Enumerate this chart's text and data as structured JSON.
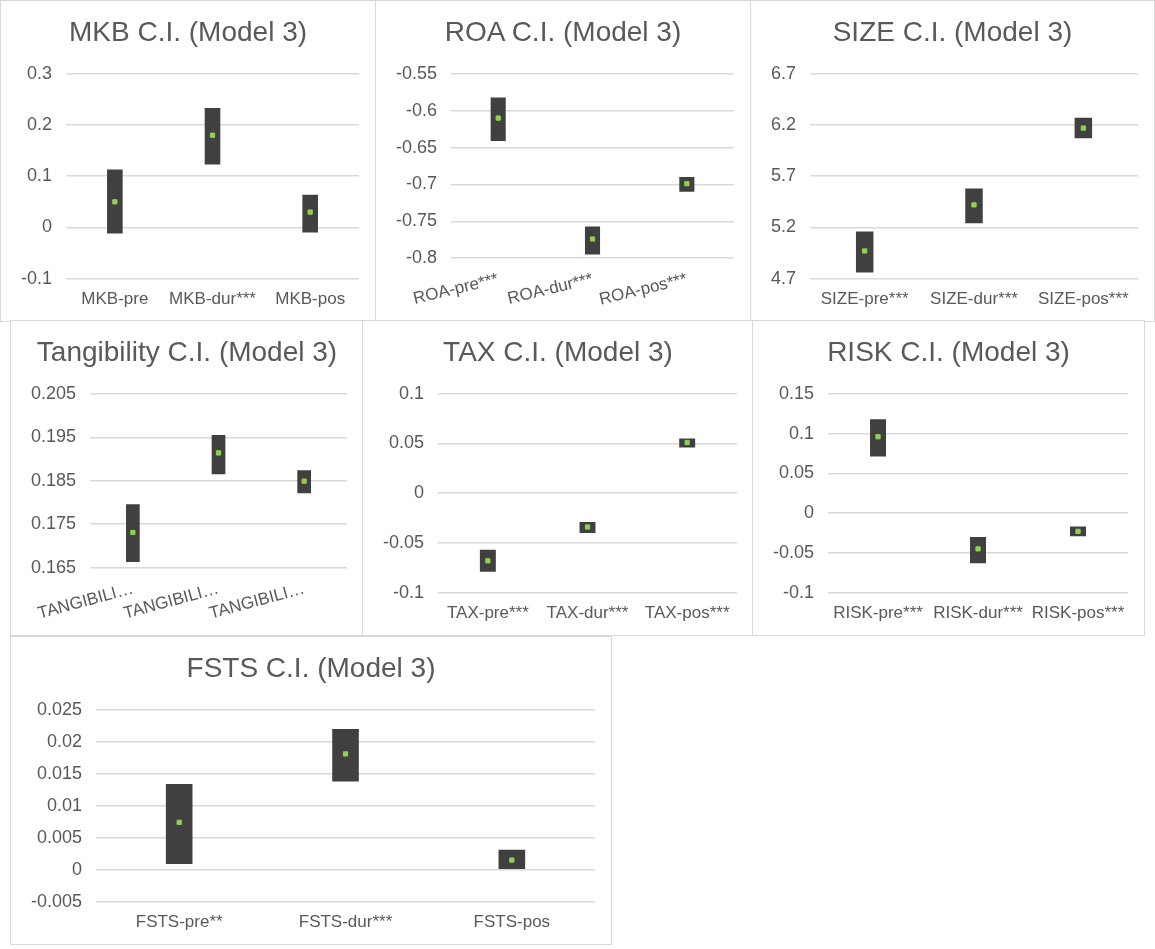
{
  "chart_data": [
    {
      "type": "bar",
      "title": "MKB C.I. (Model 3)",
      "categories": [
        "MKB-pre",
        "MKB-dur***",
        "MKB-pos"
      ],
      "series": [
        {
          "color": "#404040",
          "base": [
            -0.012,
            0.123,
            -0.01
          ],
          "values": [
            0.125,
            0.11,
            0.074
          ]
        },
        {
          "type": "scatter",
          "color": "#92d050",
          "marker": "square",
          "values": [
            0.05,
            0.18,
            0.03
          ]
        }
      ],
      "ylim": [
        -0.1,
        0.3
      ],
      "yticks": [
        -0.1,
        0,
        0.1,
        0.2,
        0.3
      ],
      "grid": "y",
      "legend": false
    },
    {
      "type": "bar",
      "title": "ROA C.I. (Model 3)",
      "categories": [
        "ROA-pre***",
        "ROA-dur***",
        "ROA-pos***"
      ],
      "series": [
        {
          "color": "#404040",
          "base": [
            -0.641,
            -0.795,
            -0.71
          ],
          "values": [
            0.059,
            0.038,
            0.02
          ]
        },
        {
          "type": "scatter",
          "color": "#92d050",
          "marker": "square",
          "values": [
            -0.61,
            -0.774,
            -0.699
          ]
        }
      ],
      "ylim": [
        -0.8,
        -0.55
      ],
      "yticks": [
        -0.8,
        -0.75,
        -0.7,
        -0.65,
        -0.6,
        -0.55
      ],
      "grid": "y",
      "legend": false
    },
    {
      "type": "bar",
      "title": "SIZE C.I. (Model 3)",
      "categories": [
        "SIZE-pre***",
        "SIZE-dur***",
        "SIZE-pos***"
      ],
      "series": [
        {
          "color": "#404040",
          "base": [
            4.76,
            5.24,
            6.07
          ],
          "values": [
            0.4,
            0.34,
            0.2
          ]
        },
        {
          "type": "scatter",
          "color": "#92d050",
          "marker": "square",
          "values": [
            4.97,
            5.42,
            6.17
          ]
        }
      ],
      "ylim": [
        4.7,
        6.7
      ],
      "yticks": [
        4.7,
        5.2,
        5.7,
        6.2,
        6.7
      ],
      "grid": "y",
      "legend": false
    },
    {
      "type": "bar",
      "title": "Tangibility C.I. (Model 3)",
      "categories": [
        "TANGIBILI…",
        "TANGIBILI…",
        "TANGIBILI…"
      ],
      "series": [
        {
          "color": "#404040",
          "base": [
            0.1663,
            0.1865,
            0.1821
          ],
          "values": [
            0.0133,
            0.009,
            0.0053
          ]
        },
        {
          "type": "scatter",
          "color": "#92d050",
          "marker": "square",
          "values": [
            0.1731,
            0.1914,
            0.1849
          ]
        }
      ],
      "ylim": [
        0.165,
        0.205
      ],
      "yticks": [
        0.165,
        0.175,
        0.185,
        0.195,
        0.205
      ],
      "grid": "y",
      "legend": false
    },
    {
      "type": "bar",
      "title": "TAX C.I. (Model 3)",
      "categories": [
        "TAX-pre***",
        "TAX-dur***",
        "TAX-pos***"
      ],
      "series": [
        {
          "color": "#404040",
          "base": [
            -0.079,
            -0.04,
            0.046
          ],
          "values": [
            0.022,
            0.011,
            0.009
          ]
        },
        {
          "type": "scatter",
          "color": "#92d050",
          "marker": "square",
          "values": [
            -0.068,
            -0.034,
            0.051
          ]
        }
      ],
      "ylim": [
        -0.1,
        0.1
      ],
      "yticks": [
        -0.1,
        -0.05,
        0,
        0.05,
        0.1
      ],
      "grid": "y",
      "legend": false
    },
    {
      "type": "bar",
      "title": "RISK C.I. (Model 3)",
      "categories": [
        "RISK-pre***",
        "RISK-dur***",
        "RISK-pos***"
      ],
      "series": [
        {
          "color": "#404040",
          "base": [
            0.071,
            -0.063,
            -0.029
          ],
          "values": [
            0.047,
            0.033,
            0.012
          ]
        },
        {
          "type": "scatter",
          "color": "#92d050",
          "marker": "square",
          "values": [
            0.096,
            -0.045,
            -0.023
          ]
        }
      ],
      "ylim": [
        -0.1,
        0.15
      ],
      "yticks": [
        -0.1,
        -0.05,
        0,
        0.05,
        0.1,
        0.15
      ],
      "grid": "y",
      "legend": false
    },
    {
      "type": "bar",
      "title": "FSTS C.I. (Model 3)",
      "categories": [
        "FSTS-pre**",
        "FSTS-dur***",
        "FSTS-pos"
      ],
      "series": [
        {
          "color": "#404040",
          "base": [
            0.0009,
            0.0138,
            0.0001
          ],
          "values": [
            0.0125,
            0.0082,
            0.003
          ]
        },
        {
          "type": "scatter",
          "color": "#92d050",
          "marker": "square",
          "values": [
            0.0074,
            0.0181,
            0.0015
          ]
        }
      ],
      "ylim": [
        -0.005,
        0.025
      ],
      "yticks": [
        -0.005,
        0,
        0.005,
        0.01,
        0.015,
        0.02,
        0.025
      ],
      "grid": "y",
      "legend": false
    }
  ]
}
